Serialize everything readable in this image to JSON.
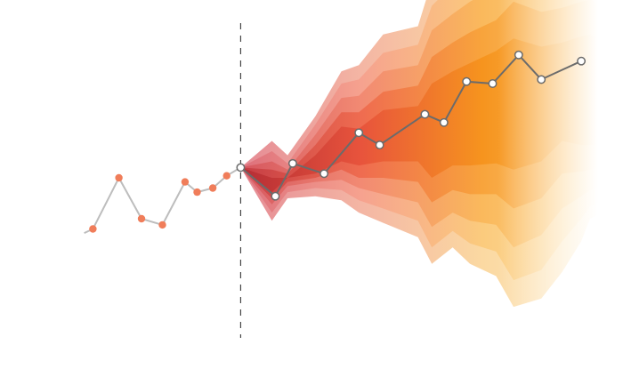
{
  "chart_data": {
    "type": "line",
    "title": "",
    "xlabel": "",
    "ylabel": "",
    "xlim": [
      -3,
      31
    ],
    "ylim": [
      -7,
      8.5
    ],
    "grid": false,
    "legend": "none",
    "forecast_origin_x": 9,
    "series": [
      {
        "role": "history",
        "x": [
          0,
          0.5,
          2,
          3.3,
          4.5,
          5.8,
          6.5,
          7.4,
          8.2,
          9
        ],
        "y": [
          -2.1,
          -1.9,
          0.6,
          -1.4,
          -1.7,
          0.4,
          -0.1,
          0.1,
          0.7,
          1.1
        ]
      },
      {
        "role": "forecast",
        "x": [
          9,
          11,
          12,
          13.8,
          15.8,
          17,
          19.6,
          20.7,
          22,
          23.5,
          25,
          26.3,
          28.6
        ],
        "y": [
          1.1,
          -0.3,
          1.3,
          0.8,
          2.8,
          2.2,
          3.7,
          3.3,
          5.3,
          5.2,
          6.6,
          5.4,
          6.3
        ]
      }
    ],
    "bands": [
      {
        "level": 6,
        "x": [
          9,
          10.8,
          11.7,
          13.3,
          14.8,
          15.8,
          17.2,
          19.2,
          20,
          21.2,
          22.2,
          23.7,
          24.7,
          26.3,
          27.5,
          28.6,
          29.1,
          29.6,
          30.1
        ],
        "lower": [
          1.1,
          -1.5,
          -0.4,
          -0.3,
          -0.5,
          -1.1,
          -1.6,
          -2.3,
          -3.6,
          -2.8,
          -3.6,
          -4.2,
          -5.7,
          -5.3,
          -4.0,
          -2.5,
          -1.4,
          -1.2,
          -1.1
        ],
        "upper": [
          1.1,
          2.4,
          1.7,
          3.6,
          5.8,
          6.1,
          7.6,
          8.0,
          10.2,
          11.4,
          12.2,
          12.9,
          14.5,
          13.6,
          13.8,
          14.2,
          14.5,
          14.1,
          13.7
        ]
      },
      {
        "level": 5,
        "x": [
          9,
          10.8,
          11.7,
          13.3,
          14.8,
          15.8,
          17.2,
          19.2,
          20,
          21.2,
          22.2,
          23.7,
          24.7,
          26.3,
          27.5,
          28.6,
          29.1,
          29.6,
          30.1
        ],
        "lower": [
          1.1,
          -1.1,
          -0.1,
          0.1,
          0.0,
          -0.5,
          -0.9,
          -1.5,
          -2.8,
          -2.0,
          -2.6,
          -3.0,
          -4.4,
          -3.9,
          -2.5,
          -1.4,
          -0.8,
          -0.6,
          -0.5
        ],
        "upper": [
          1.1,
          1.9,
          1.3,
          3.2,
          5.2,
          5.4,
          6.7,
          7.1,
          9.0,
          10.0,
          10.7,
          11.4,
          12.8,
          12.0,
          12.2,
          12.5,
          12.7,
          12.4,
          12.1
        ]
      },
      {
        "level": 4,
        "x": [
          9,
          10.8,
          11.7,
          13.3,
          14.8,
          15.8,
          17.2,
          19.2,
          20,
          21.2,
          22.2,
          23.7,
          24.7,
          26.3,
          27.5,
          28.6,
          29.1,
          29.6,
          30.1
        ],
        "lower": [
          1.1,
          -0.7,
          0.2,
          0.4,
          0.5,
          0.1,
          -0.2,
          -0.6,
          -1.8,
          -1.1,
          -1.5,
          -1.7,
          -2.8,
          -2.2,
          -0.9,
          -0.3,
          0.0,
          0.1,
          0.2
        ],
        "upper": [
          1.1,
          1.4,
          1.0,
          2.7,
          4.5,
          4.6,
          5.8,
          6.1,
          7.8,
          8.6,
          9.2,
          9.9,
          11.0,
          10.4,
          10.6,
          10.9,
          11.0,
          10.8,
          10.5
        ]
      },
      {
        "level": 3,
        "x": [
          9,
          10.8,
          11.7,
          13.3,
          14.8,
          15.8,
          17.2,
          19.2,
          20,
          21.2,
          22.2,
          23.7,
          24.7,
          26.3,
          27.5,
          28.6,
          29.1,
          29.6,
          30.1
        ],
        "lower": [
          1.1,
          -0.4,
          0.4,
          0.6,
          1.0,
          0.6,
          0.6,
          0.4,
          -0.6,
          0.0,
          -0.2,
          -0.2,
          -0.9,
          -0.4,
          0.8,
          0.9,
          1.0,
          1.1,
          1.2
        ],
        "upper": [
          1.1,
          1.0,
          0.8,
          2.2,
          3.8,
          3.8,
          4.8,
          5.1,
          6.5,
          7.2,
          7.7,
          8.3,
          9.2,
          8.7,
          8.9,
          9.2,
          9.3,
          9.1,
          8.9
        ]
      },
      {
        "level": 2,
        "x": [
          9,
          10.8,
          11.7,
          13.3,
          14.8,
          15.8,
          17.2,
          19.2,
          20,
          21.2,
          22.2,
          23.7,
          24.7,
          26.3,
          27.5,
          28.6,
          29.1,
          29.6,
          30.1
        ],
        "lower": [
          1.1,
          -0.1,
          0.6,
          0.8,
          1.4,
          1.2,
          1.4,
          1.4,
          0.6,
          1.2,
          1.2,
          1.3,
          1.0,
          1.4,
          2.4,
          2.2,
          2.2,
          2.2,
          2.2
        ],
        "upper": [
          1.1,
          0.6,
          0.6,
          1.7,
          3.1,
          3.0,
          3.9,
          4.1,
          5.2,
          5.8,
          6.2,
          6.8,
          7.4,
          7.0,
          7.2,
          7.5,
          7.6,
          7.4,
          7.2
        ]
      }
    ]
  }
}
